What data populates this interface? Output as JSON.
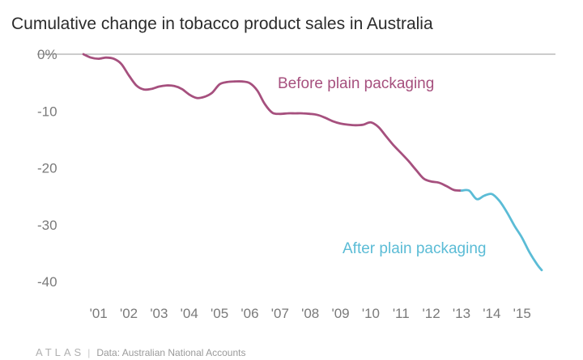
{
  "colors": {
    "before": "#a6507e",
    "after": "#5bbcd6",
    "axis": "#9a9a9a",
    "tick_text": "#7a7a7a",
    "title": "#2b2b2b"
  },
  "chart_data": {
    "type": "line",
    "title": "Cumulative change in tobacco product sales in Australia",
    "xlabel": "",
    "ylabel": "",
    "xlim": [
      2000.5,
      2015.65
    ],
    "ylim": [
      -40,
      0
    ],
    "ytick_values": [
      0,
      -10,
      -20,
      -30,
      -40
    ],
    "ytick_labels": [
      "0%",
      "-10",
      "-20",
      "-30",
      "-40"
    ],
    "xtick_values": [
      2001,
      2002,
      2003,
      2004,
      2005,
      2006,
      2007,
      2008,
      2009,
      2010,
      2011,
      2012,
      2013,
      2014,
      2015
    ],
    "xtick_labels": [
      "'01",
      "'02",
      "'03",
      "'04",
      "'05",
      "'06",
      "'07",
      "'08",
      "'09",
      "'10",
      "'11",
      "'12",
      "'13",
      "'14",
      "'15"
    ],
    "series": [
      {
        "name": "Before plain packaging",
        "color": "#a6507e",
        "x": [
          2000.5,
          2000.75,
          2001.0,
          2001.25,
          2001.5,
          2001.75,
          2002.0,
          2002.25,
          2002.5,
          2002.75,
          2003.0,
          2003.25,
          2003.5,
          2003.75,
          2004.0,
          2004.25,
          2004.5,
          2004.75,
          2005.0,
          2005.25,
          2005.5,
          2005.75,
          2006.0,
          2006.25,
          2006.5,
          2006.75,
          2007.0,
          2007.25,
          2007.5,
          2007.75,
          2008.0,
          2008.25,
          2008.5,
          2008.75,
          2009.0,
          2009.25,
          2009.5,
          2009.75,
          2010.0,
          2010.25,
          2010.5,
          2010.75,
          2011.0,
          2011.25,
          2011.5,
          2011.75,
          2012.0,
          2012.25,
          2012.5,
          2012.75,
          2013.0
        ],
        "values": [
          0,
          -0.6,
          -0.8,
          -0.6,
          -0.8,
          -1.7,
          -3.7,
          -5.5,
          -6.2,
          -6.1,
          -5.7,
          -5.5,
          -5.6,
          -6.1,
          -7.1,
          -7.7,
          -7.5,
          -6.8,
          -5.3,
          -4.9,
          -4.8,
          -4.8,
          -5.1,
          -6.4,
          -8.8,
          -10.3,
          -10.5,
          -10.4,
          -10.4,
          -10.4,
          -10.5,
          -10.7,
          -11.2,
          -11.8,
          -12.2,
          -12.4,
          -12.5,
          -12.4,
          -12.0,
          -12.8,
          -14.4,
          -16.0,
          -17.4,
          -18.8,
          -20.4,
          -21.9,
          -22.4,
          -22.6,
          -23.2,
          -23.9,
          -24.0
        ]
      },
      {
        "name": "After plain packaging",
        "color": "#5bbcd6",
        "x": [
          2013.0,
          2013.25,
          2013.5,
          2013.75,
          2014.0,
          2014.25,
          2014.5,
          2014.75,
          2015.0,
          2015.25,
          2015.5,
          2015.65
        ],
        "values": [
          -24.0,
          -24.0,
          -25.5,
          -24.9,
          -24.6,
          -25.8,
          -27.8,
          -30.2,
          -32.3,
          -34.9,
          -37.0,
          -38.0
        ]
      }
    ],
    "annotations": [
      {
        "text": "Before plain packaging",
        "series": "Before plain packaging"
      },
      {
        "text": "After plain packaging",
        "series": "After plain packaging"
      }
    ]
  },
  "footer": {
    "logo_text": "ATLAS",
    "separator": "|",
    "source": "Data: Australian National Accounts"
  }
}
